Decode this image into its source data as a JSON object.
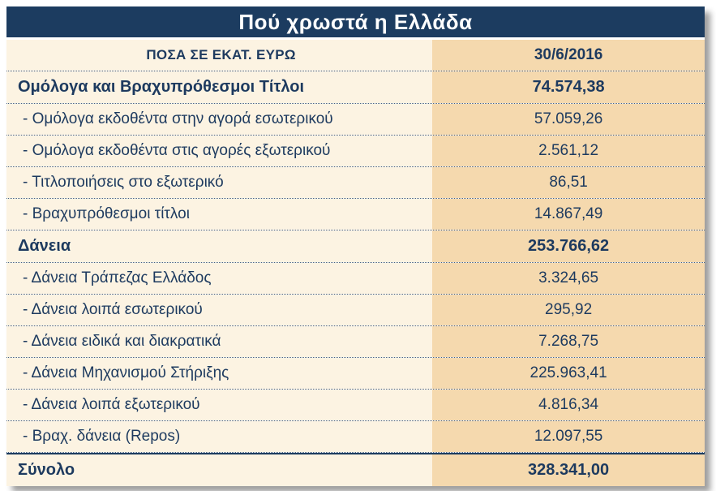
{
  "title": "Πού χρωστά η Ελλάδα",
  "colors": {
    "title_bg": "#1c3c60",
    "text": "#1d3a5f",
    "left_column_bg": "#fcf3e2",
    "right_column_bg": "#f5d9ae"
  },
  "chart_data": {
    "type": "table",
    "title": "Πού χρωστά η Ελλάδα",
    "columns": [
      "ΠΟΣΑ ΣΕ ΕΚΑΤ. ΕΥΡΩ",
      "30/6/2016"
    ],
    "unit": "εκατ. ευρώ",
    "rows": [
      {
        "label": "Ομόλογα και Βραχυπρόθεσμοι Τίτλοι",
        "value": "74.574,38",
        "bold": true
      },
      {
        "label": "- Ομόλογα εκδοθέντα στην αγορά εσωτερικού",
        "value": "57.059,26",
        "bold": false
      },
      {
        "label": "- Ομόλογα εκδοθέντα στις αγορές εξωτερικού",
        "value": "2.561,12",
        "bold": false
      },
      {
        "label": "- Τιτλοποιήσεις στο εξωτερικό",
        "value": "86,51",
        "bold": false
      },
      {
        "label": "- Βραχυπρόθεσμοι τίτλοι",
        "value": "14.867,49",
        "bold": false
      },
      {
        "label": "Δάνεια",
        "value": "253.766,62",
        "bold": true
      },
      {
        "label": "- Δάνεια Τράπεζας Ελλάδος",
        "value": "3.324,65",
        "bold": false
      },
      {
        "label": "- Δάνεια λοιπά εσωτερικού",
        "value": "295,92",
        "bold": false
      },
      {
        "label": "- Δάνεια ειδικά και διακρατικά",
        "value": "7.268,75",
        "bold": false
      },
      {
        "label": "- Δάνεια Μηχανισμού Στήριξης",
        "value": "225.963,41",
        "bold": false
      },
      {
        "label": "- Δάνεια λοιπά εξωτερικού",
        "value": "4.816,34",
        "bold": false
      },
      {
        "label": "- Βραχ. δάνεια (Repos)",
        "value": "12.097,55",
        "bold": false
      },
      {
        "label": "Σύνολο",
        "value": "328.341,00",
        "bold": true,
        "total": true
      }
    ]
  }
}
